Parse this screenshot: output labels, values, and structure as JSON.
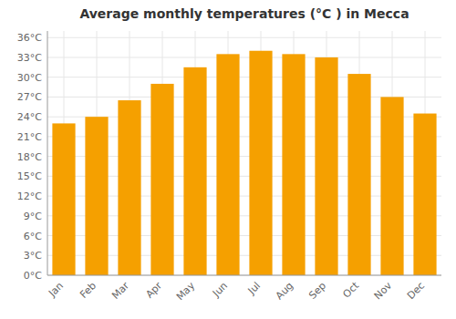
{
  "chart_data": {
    "type": "bar",
    "title": "Average monthly temperatures (°C ) in Mecca",
    "categories": [
      "Jan",
      "Feb",
      "Mar",
      "Apr",
      "May",
      "Jun",
      "Jul",
      "Aug",
      "Sep",
      "Oct",
      "Nov",
      "Dec"
    ],
    "values": [
      23,
      24,
      26.5,
      29,
      31.5,
      33.5,
      34,
      33.5,
      33,
      30.5,
      27,
      24.5
    ],
    "color": "#F5A000",
    "ylim": [
      0,
      37
    ],
    "yticks": [
      {
        "value": 0,
        "label": "0°C"
      },
      {
        "value": 3,
        "label": "3°C"
      },
      {
        "value": 6,
        "label": "6°C"
      },
      {
        "value": 9,
        "label": "9°C"
      },
      {
        "value": 12,
        "label": "12°C"
      },
      {
        "value": 15,
        "label": "15°C"
      },
      {
        "value": 18,
        "label": "18°C"
      },
      {
        "value": 21,
        "label": "21°C"
      },
      {
        "value": 24,
        "label": "24°C"
      },
      {
        "value": 27,
        "label": "27°C"
      },
      {
        "value": 30,
        "label": "30°C"
      },
      {
        "value": 33,
        "label": "33°C"
      },
      {
        "value": 36,
        "label": "36°C"
      }
    ],
    "grid": true
  }
}
